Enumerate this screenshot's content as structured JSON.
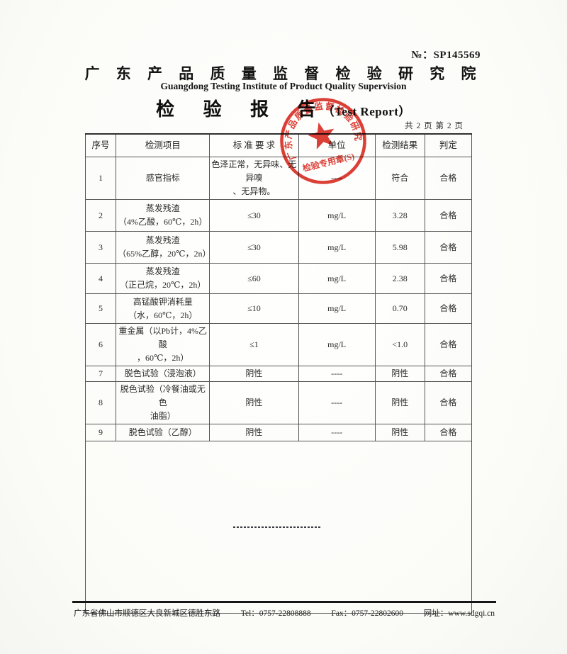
{
  "header": {
    "report_no_label": "№：",
    "report_no": "SP145569",
    "institute_cn": "广 东 产 品 质 量 监 督 检 验 研 究 院",
    "institute_en": "Guangdong Testing Institute of Product Quality Supervision",
    "report_title_cn": "检 验 报 告",
    "report_title_en": "（Test Report）",
    "page_indicator": "共 2 页 第 2 页"
  },
  "stamp": {
    "arc_text": "广东产品质量监督检验研究院",
    "bottom_text": "检验专用章(S)",
    "color": "#d8251b"
  },
  "table": {
    "headers": [
      "序号",
      "检测项目",
      "标 准 要 求",
      "单位",
      "检测结果",
      "判定"
    ],
    "rows": [
      {
        "no": "1",
        "item": [
          "感官指标"
        ],
        "std": [
          "色泽正常，无异味、无异嗅",
          "、无异物。"
        ],
        "unit": "----",
        "result": "符合",
        "judge": "合格"
      },
      {
        "no": "2",
        "item": [
          "蒸发残渣",
          "（4%乙酸，60℃，2h）"
        ],
        "std": [
          "≤30"
        ],
        "unit": "mg/L",
        "result": "3.28",
        "judge": "合格"
      },
      {
        "no": "3",
        "item": [
          "蒸发残渣",
          "（65%乙醇，20℃，2n）"
        ],
        "std": [
          "≤30"
        ],
        "unit": "mg/L",
        "result": "5.98",
        "judge": "合格"
      },
      {
        "no": "4",
        "item": [
          "蒸发残渣",
          "（正己烷，20℃，2h）"
        ],
        "std": [
          "≤60"
        ],
        "unit": "mg/L",
        "result": "2.38",
        "judge": "合格"
      },
      {
        "no": "5",
        "item": [
          "高锰酸钾消耗量",
          "（水，60℃，2h）"
        ],
        "std": [
          "≤10"
        ],
        "unit": "mg/L",
        "result": "0.70",
        "judge": "合格"
      },
      {
        "no": "6",
        "item": [
          "重金属（以Pb计，4%乙酸",
          "，60℃，2h）"
        ],
        "std": [
          "≤1"
        ],
        "unit": "mg/L",
        "result": "<1.0",
        "judge": "合格"
      },
      {
        "no": "7",
        "item": [
          "脱色试验（浸泡液）"
        ],
        "std": [
          "阴性"
        ],
        "unit": "----",
        "result": "阴性",
        "judge": "合格"
      },
      {
        "no": "8",
        "item": [
          "脱色试验（冷餐油或无色",
          "油脂）"
        ],
        "std": [
          "阴性"
        ],
        "unit": "----",
        "result": "阴性",
        "judge": "合格"
      },
      {
        "no": "9",
        "item": [
          "脱色试验（乙醇）"
        ],
        "std": [
          "阴性"
        ],
        "unit": "----",
        "result": "阴性",
        "judge": "合格"
      }
    ]
  },
  "footer": {
    "address": "广东省佛山市顺德区大良新城区德胜东路",
    "tel": "Tel：0757-22808888",
    "fax": "Fax：0757-22802600",
    "web": "网址：www.sdgqi.cn"
  }
}
